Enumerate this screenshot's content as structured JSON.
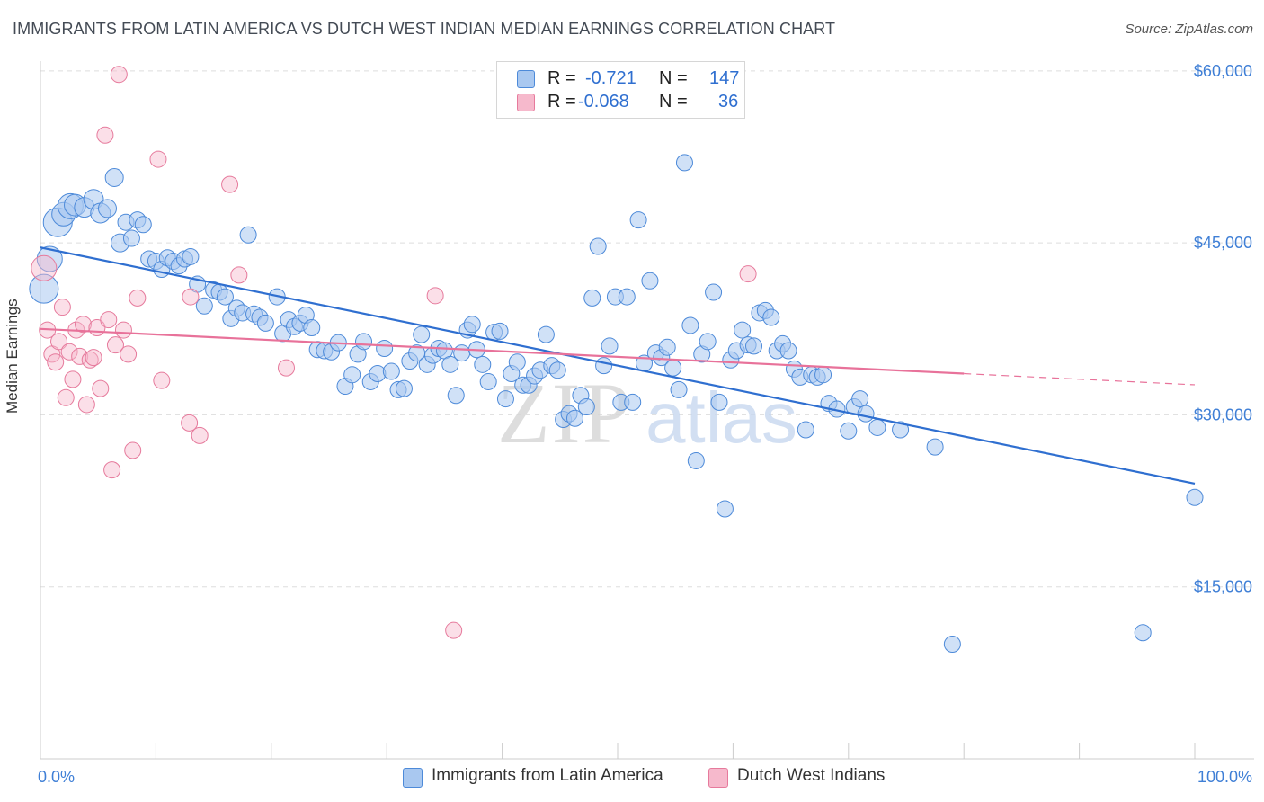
{
  "header": {
    "title": "IMMIGRANTS FROM LATIN AMERICA VS DUTCH WEST INDIAN MEDIAN EARNINGS CORRELATION CHART",
    "source": "Source: ZipAtlas.com"
  },
  "watermark": {
    "zip": "ZIP",
    "atlas": "atlas"
  },
  "legend": {
    "r_label": "R =",
    "n_label": "N =",
    "rows": [
      {
        "r": "-0.721",
        "n": "147"
      },
      {
        "r": "-0.068",
        "n": "36"
      }
    ]
  },
  "colors": {
    "blue_fill": "#a9c8f0",
    "blue_stroke": "#4d8ad9",
    "blue_line": "#2f6fd0",
    "pink_fill": "#f6b9cc",
    "pink_stroke": "#e67a9c",
    "pink_line": "#e8729a",
    "grid": "#dddddd",
    "tick_text": "#3f7fd6"
  },
  "chart_data": {
    "type": "scatter",
    "title": "IMMIGRANTS FROM LATIN AMERICA VS DUTCH WEST INDIAN MEDIAN EARNINGS CORRELATION CHART",
    "xlabel": "",
    "ylabel": "Median Earnings",
    "xlim": [
      0,
      100
    ],
    "ylim": [
      0,
      63000
    ],
    "x_tick_labels": [
      "0.0%",
      "100.0%"
    ],
    "y_ticks": [
      15000,
      30000,
      45000,
      60000
    ],
    "y_tick_labels": [
      "$15,000",
      "$30,000",
      "$45,000",
      "$60,000"
    ],
    "grid": true,
    "legend_position": "top-center",
    "series": [
      {
        "name": "Immigrants from Latin America",
        "r": -0.721,
        "n": 147,
        "trend": {
          "x": [
            0,
            100
          ],
          "y": [
            44600,
            24000
          ]
        },
        "points": [
          [
            0.3,
            41000,
            16
          ],
          [
            0.8,
            43600,
            14
          ],
          [
            1.5,
            46800,
            16
          ],
          [
            2.0,
            47500,
            13
          ],
          [
            2.6,
            48200,
            14
          ],
          [
            3.0,
            48300,
            12
          ],
          [
            3.8,
            48100,
            11
          ],
          [
            4.6,
            48800,
            11
          ],
          [
            5.2,
            47600,
            11
          ],
          [
            5.8,
            48000,
            10
          ],
          [
            6.4,
            50700,
            10
          ],
          [
            6.9,
            45000,
            10
          ],
          [
            7.4,
            46800,
            9
          ],
          [
            7.9,
            45400,
            9
          ],
          [
            8.4,
            47000,
            9
          ],
          [
            8.9,
            46600,
            9
          ],
          [
            9.4,
            43600,
            9
          ],
          [
            10.0,
            43400,
            9
          ],
          [
            10.5,
            42700,
            9
          ],
          [
            11.0,
            43700,
            9
          ],
          [
            11.5,
            43400,
            9
          ],
          [
            12.0,
            43000,
            9
          ],
          [
            12.5,
            43600,
            9
          ],
          [
            13.0,
            43800,
            9
          ],
          [
            13.6,
            41400,
            9
          ],
          [
            14.2,
            39500,
            9
          ],
          [
            15.0,
            40900,
            9
          ],
          [
            15.5,
            40700,
            9
          ],
          [
            16.0,
            40300,
            9
          ],
          [
            16.5,
            38400,
            9
          ],
          [
            17.0,
            39300,
            9
          ],
          [
            17.5,
            38900,
            9
          ],
          [
            18.0,
            45700,
            9
          ],
          [
            18.5,
            38800,
            9
          ],
          [
            19.0,
            38500,
            9
          ],
          [
            19.5,
            38000,
            9
          ],
          [
            20.5,
            40300,
            9
          ],
          [
            21.0,
            37100,
            9
          ],
          [
            21.5,
            38300,
            9
          ],
          [
            22.0,
            37700,
            9
          ],
          [
            22.5,
            38000,
            9
          ],
          [
            23.0,
            38700,
            9
          ],
          [
            23.5,
            37600,
            9
          ],
          [
            24.0,
            35700,
            9
          ],
          [
            24.6,
            35600,
            9
          ],
          [
            25.2,
            35500,
            9
          ],
          [
            25.8,
            36300,
            9
          ],
          [
            26.4,
            32500,
            9
          ],
          [
            27.0,
            33500,
            9
          ],
          [
            27.5,
            35300,
            9
          ],
          [
            28.0,
            36400,
            9
          ],
          [
            28.6,
            32900,
            9
          ],
          [
            29.2,
            33600,
            9
          ],
          [
            29.8,
            35800,
            9
          ],
          [
            30.4,
            33800,
            9
          ],
          [
            31.0,
            32200,
            9
          ],
          [
            31.5,
            32300,
            9
          ],
          [
            32.0,
            34700,
            9
          ],
          [
            32.6,
            35400,
            9
          ],
          [
            33.0,
            37000,
            9
          ],
          [
            33.5,
            34400,
            9
          ],
          [
            34.0,
            35200,
            9
          ],
          [
            34.5,
            35800,
            9
          ],
          [
            35.0,
            35600,
            9
          ],
          [
            35.5,
            34400,
            9
          ],
          [
            36.0,
            31700,
            9
          ],
          [
            36.5,
            35400,
            9
          ],
          [
            37.0,
            37400,
            9
          ],
          [
            37.4,
            37900,
            9
          ],
          [
            37.8,
            35700,
            9
          ],
          [
            38.3,
            34400,
            9
          ],
          [
            38.8,
            32900,
            9
          ],
          [
            39.3,
            37200,
            9
          ],
          [
            39.8,
            37300,
            9
          ],
          [
            40.3,
            31400,
            9
          ],
          [
            40.8,
            33600,
            9
          ],
          [
            41.3,
            34600,
            9
          ],
          [
            41.8,
            32600,
            9
          ],
          [
            42.3,
            32600,
            9
          ],
          [
            42.8,
            33400,
            9
          ],
          [
            43.3,
            33900,
            9
          ],
          [
            43.8,
            37000,
            9
          ],
          [
            44.3,
            34300,
            9
          ],
          [
            44.8,
            33900,
            9
          ],
          [
            45.3,
            29600,
            9
          ],
          [
            45.8,
            30100,
            9
          ],
          [
            46.3,
            29700,
            9
          ],
          [
            46.8,
            31700,
            9
          ],
          [
            47.3,
            30700,
            9
          ],
          [
            47.8,
            40200,
            9
          ],
          [
            48.3,
            44700,
            9
          ],
          [
            48.8,
            34300,
            9
          ],
          [
            49.3,
            36000,
            9
          ],
          [
            49.8,
            40300,
            9
          ],
          [
            50.3,
            31100,
            9
          ],
          [
            50.8,
            40300,
            9
          ],
          [
            51.3,
            31100,
            9
          ],
          [
            51.8,
            47000,
            9
          ],
          [
            52.3,
            34500,
            9
          ],
          [
            52.8,
            41700,
            9
          ],
          [
            53.3,
            35400,
            9
          ],
          [
            53.8,
            35000,
            9
          ],
          [
            54.3,
            35900,
            9
          ],
          [
            54.8,
            34100,
            9
          ],
          [
            55.3,
            32200,
            9
          ],
          [
            55.8,
            52000,
            9
          ],
          [
            56.3,
            37800,
            9
          ],
          [
            56.8,
            26000,
            9
          ],
          [
            57.3,
            35300,
            9
          ],
          [
            57.8,
            36400,
            9
          ],
          [
            58.3,
            40700,
            9
          ],
          [
            58.8,
            31100,
            9
          ],
          [
            59.3,
            21800,
            9
          ],
          [
            59.8,
            34800,
            9
          ],
          [
            60.3,
            35600,
            9
          ],
          [
            60.8,
            37400,
            9
          ],
          [
            61.3,
            36100,
            9
          ],
          [
            61.8,
            36000,
            9
          ],
          [
            62.3,
            38900,
            9
          ],
          [
            62.8,
            39100,
            9
          ],
          [
            63.3,
            38500,
            9
          ],
          [
            63.8,
            35600,
            9
          ],
          [
            64.3,
            36200,
            9
          ],
          [
            64.8,
            35600,
            9
          ],
          [
            65.3,
            34000,
            9
          ],
          [
            65.8,
            33300,
            9
          ],
          [
            66.3,
            28700,
            9
          ],
          [
            66.8,
            33500,
            9
          ],
          [
            67.3,
            33300,
            9
          ],
          [
            67.8,
            33500,
            9
          ],
          [
            68.3,
            31000,
            9
          ],
          [
            69.0,
            30500,
            9
          ],
          [
            70.0,
            28600,
            9
          ],
          [
            70.5,
            30700,
            9
          ],
          [
            71.0,
            31400,
            9
          ],
          [
            71.5,
            30100,
            9
          ],
          [
            72.5,
            28900,
            9
          ],
          [
            74.5,
            28700,
            9
          ],
          [
            77.5,
            27200,
            9
          ],
          [
            79.0,
            10000,
            9
          ],
          [
            95.5,
            11000,
            9
          ],
          [
            100.0,
            22800,
            9
          ]
        ]
      },
      {
        "name": "Dutch West Indians",
        "r": -0.068,
        "n": 36,
        "trend": {
          "x": [
            0,
            80
          ],
          "y": [
            37500,
            33600
          ]
        },
        "points": [
          [
            0.3,
            42800,
            14
          ],
          [
            0.6,
            37400,
            9
          ],
          [
            1.0,
            35300,
            9
          ],
          [
            1.3,
            34600,
            9
          ],
          [
            1.6,
            36400,
            9
          ],
          [
            1.9,
            39400,
            9
          ],
          [
            2.2,
            31500,
            9
          ],
          [
            2.5,
            35500,
            9
          ],
          [
            2.8,
            33100,
            9
          ],
          [
            3.1,
            37400,
            9
          ],
          [
            3.4,
            35100,
            9
          ],
          [
            3.7,
            37900,
            9
          ],
          [
            4.0,
            30900,
            9
          ],
          [
            4.3,
            34800,
            9
          ],
          [
            4.6,
            35000,
            9
          ],
          [
            4.9,
            37600,
            9
          ],
          [
            5.2,
            32300,
            9
          ],
          [
            5.6,
            54400,
            9
          ],
          [
            5.9,
            38300,
            9
          ],
          [
            6.2,
            25200,
            9
          ],
          [
            6.5,
            36100,
            9
          ],
          [
            6.8,
            59700,
            9
          ],
          [
            7.2,
            37400,
            9
          ],
          [
            7.6,
            35300,
            9
          ],
          [
            8.0,
            26900,
            9
          ],
          [
            8.4,
            40200,
            9
          ],
          [
            10.2,
            52300,
            9
          ],
          [
            10.5,
            33000,
            9
          ],
          [
            12.9,
            29300,
            9
          ],
          [
            13.0,
            40300,
            9
          ],
          [
            13.8,
            28200,
            9
          ],
          [
            16.4,
            50100,
            9
          ],
          [
            17.2,
            42200,
            9
          ],
          [
            21.3,
            34100,
            9
          ],
          [
            34.2,
            40400,
            9
          ],
          [
            35.8,
            11200,
            9
          ],
          [
            61.3,
            42300,
            9
          ]
        ]
      }
    ]
  },
  "bottom_legend": {
    "items": [
      {
        "label": "Immigrants from Latin America"
      },
      {
        "label": "Dutch West Indians"
      }
    ]
  }
}
